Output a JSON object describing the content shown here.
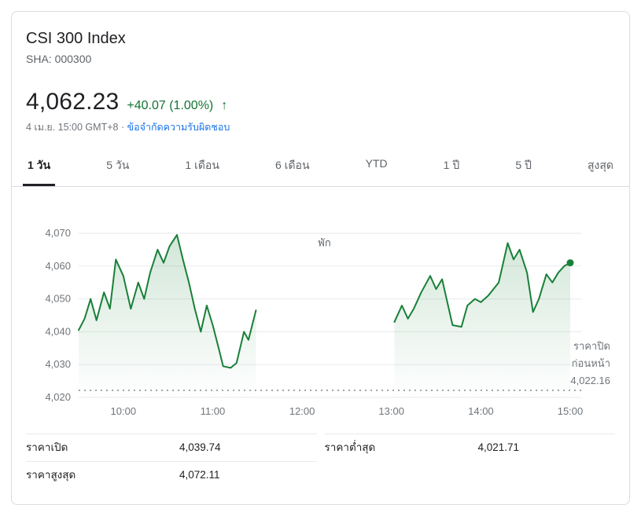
{
  "header": {
    "title": "CSI 300 Index",
    "ticker": "SHA: 000300",
    "price": "4,062.23",
    "change": "+40.07 (1.00%)",
    "arrow_icon": "↑",
    "timestamp": "4 เม.ย. 15:00 GMT+8 ·",
    "disclaimer_link": "ข้อจำกัดความรับผิดชอบ"
  },
  "tabs": [
    {
      "id": "1-day",
      "label": "1 วัน",
      "active": true
    },
    {
      "id": "5-day",
      "label": "5 วัน",
      "active": false
    },
    {
      "id": "1-month",
      "label": "1 เดือน",
      "active": false
    },
    {
      "id": "6-month",
      "label": "6 เดือน",
      "active": false
    },
    {
      "id": "ytd",
      "label": "YTD",
      "active": false
    },
    {
      "id": "1-year",
      "label": "1 ปี",
      "active": false
    },
    {
      "id": "5-year",
      "label": "5 ปี",
      "active": false
    },
    {
      "id": "max",
      "label": "สูงสุด",
      "active": false
    }
  ],
  "chart_data": {
    "type": "line",
    "title": "CSI 300 Index intraday price (1 day)",
    "line_color": "#188038",
    "fill_color_top": "rgba(24,128,56,0.22)",
    "fill_color_bottom": "rgba(24,128,56,0)",
    "grid_color": "#e8eaed",
    "ylim": [
      4020,
      4075.5
    ],
    "x_range_minutes": [
      570,
      900
    ],
    "y_ticks": [
      {
        "value": 4070,
        "label": "4,070"
      },
      {
        "value": 4060,
        "label": "4,060"
      },
      {
        "value": 4050,
        "label": "4,050"
      },
      {
        "value": 4040,
        "label": "4,040"
      },
      {
        "value": 4030,
        "label": "4,030"
      },
      {
        "value": 4020,
        "label": "4,020"
      }
    ],
    "x_ticks": [
      {
        "minute": 600,
        "label": "10:00"
      },
      {
        "minute": 660,
        "label": "11:00"
      },
      {
        "minute": 720,
        "label": "12:00"
      },
      {
        "minute": 780,
        "label": "13:00"
      },
      {
        "minute": 840,
        "label": "14:00"
      },
      {
        "minute": 900,
        "label": "15:00"
      }
    ],
    "break_label": "พัก",
    "break_label_position": {
      "minute": 735,
      "value": 4066
    },
    "previous_close": {
      "value": 4022.16,
      "label_line1": "ราคาปิด",
      "label_line2": "ก่อนหน้า",
      "value_label": "4,022.16"
    },
    "last_point_marker": true,
    "series": [
      {
        "name": "morning-session",
        "points": [
          [
            570,
            4040.5
          ],
          [
            574,
            4044
          ],
          [
            578,
            4050
          ],
          [
            582,
            4043.5
          ],
          [
            587,
            4052
          ],
          [
            591,
            4047
          ],
          [
            595,
            4062
          ],
          [
            600,
            4057
          ],
          [
            605,
            4047
          ],
          [
            610,
            4055
          ],
          [
            614,
            4050
          ],
          [
            618,
            4058
          ],
          [
            623,
            4065
          ],
          [
            627,
            4061
          ],
          [
            631,
            4066
          ],
          [
            636,
            4069.5
          ],
          [
            640,
            4062
          ],
          [
            644,
            4055
          ],
          [
            648,
            4047
          ],
          [
            652,
            4040
          ],
          [
            656,
            4048
          ],
          [
            660,
            4042
          ],
          [
            664,
            4035
          ],
          [
            667,
            4029.5
          ],
          [
            672,
            4029
          ],
          [
            676,
            4030.5
          ],
          [
            681,
            4040
          ],
          [
            684,
            4037.5
          ],
          [
            689,
            4046.5
          ]
        ]
      },
      {
        "name": "afternoon-session",
        "points": [
          [
            782,
            4043
          ],
          [
            787,
            4048
          ],
          [
            791,
            4044
          ],
          [
            795,
            4047
          ],
          [
            800,
            4052
          ],
          [
            806,
            4057
          ],
          [
            810,
            4053
          ],
          [
            814,
            4056
          ],
          [
            818,
            4048
          ],
          [
            821,
            4042
          ],
          [
            827,
            4041.5
          ],
          [
            831,
            4048
          ],
          [
            836,
            4050
          ],
          [
            840,
            4049
          ],
          [
            845,
            4051
          ],
          [
            852,
            4055
          ],
          [
            858,
            4067
          ],
          [
            862,
            4062
          ],
          [
            866,
            4065
          ],
          [
            871,
            4058
          ],
          [
            875,
            4046
          ],
          [
            879,
            4050
          ],
          [
            884,
            4057.5
          ],
          [
            888,
            4055
          ],
          [
            892,
            4058
          ],
          [
            896,
            4060
          ],
          [
            900,
            4061
          ]
        ]
      }
    ]
  },
  "stats": {
    "cells": [
      {
        "label": "ราคาเปิด",
        "value": "4,039.74"
      },
      {
        "label": "ราคาต่ำสุด",
        "value": "4,021.71"
      },
      {
        "label": "ราคาสูงสุด",
        "value": "4,072.11"
      },
      {
        "label": "",
        "value": ""
      }
    ]
  }
}
